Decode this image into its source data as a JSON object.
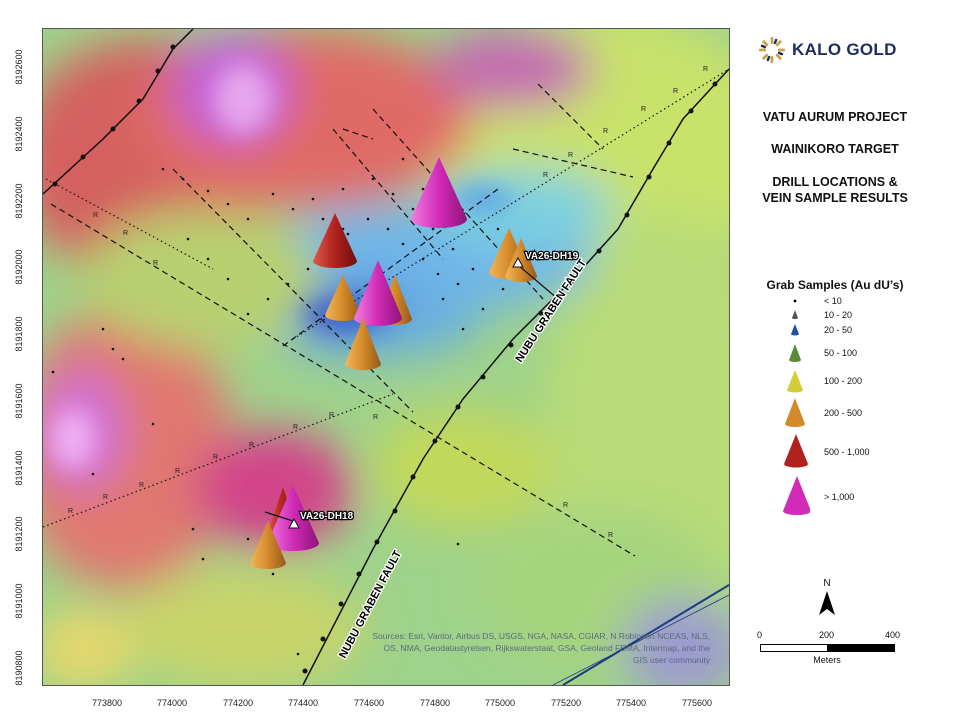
{
  "brand": {
    "name": "KALO GOLD"
  },
  "titles": [
    "VATU AURUM PROJECT",
    "WAINIKORO TARGET",
    "DRILL LOCATIONS &",
    "VEIN SAMPLE RESULTS"
  ],
  "legend": {
    "title": "Grab Samples (Au dU’s)",
    "items": [
      {
        "label": "< 10",
        "color": "#000000",
        "size": "dot"
      },
      {
        "label": "10 - 20",
        "color": "#555555",
        "size": "tiny"
      },
      {
        "label": "20 - 50",
        "color": "#1f4fa8",
        "size": "xs"
      },
      {
        "label": "50 - 100",
        "color": "#5c8a3a",
        "size": "s"
      },
      {
        "label": "100 - 200",
        "color": "#d4cc3a",
        "size": "m"
      },
      {
        "label": "200 - 500",
        "color": "#d48a2a",
        "size": "l"
      },
      {
        "label": "500 - 1,000",
        "color": "#b0221e",
        "size": "xl"
      },
      {
        "label": "> 1,000",
        "color": "#d12bb8",
        "size": "xxl"
      }
    ]
  },
  "map": {
    "y_ticks": [
      "8192600",
      "8192400",
      "8192200",
      "8192000",
      "8191800",
      "8191600",
      "8191400",
      "8191200",
      "8191000",
      "8190800"
    ],
    "x_ticks": [
      "773800",
      "774000",
      "774200",
      "774400",
      "774600",
      "774800",
      "775000",
      "775200",
      "775400",
      "775600"
    ],
    "drill_holes": [
      "VA26-DH19",
      "VA26-DH18"
    ],
    "fault_label": "NUBU GRABEN FAULT",
    "attribution": "Sources: Esri, Vantor, Airbus DS, USGS, NGA, NASA, CGIAR, N Robinson NCEAS, NLS, OS, NMA, Geodatastyrelsen, Rijkswaterstaat, GSA, Geoland FEMA, Intermap, and the GIS user community"
  },
  "north": {
    "letter": "N"
  },
  "scale": {
    "ticks": [
      "0",
      "200",
      "400"
    ],
    "unit": "Meters"
  }
}
